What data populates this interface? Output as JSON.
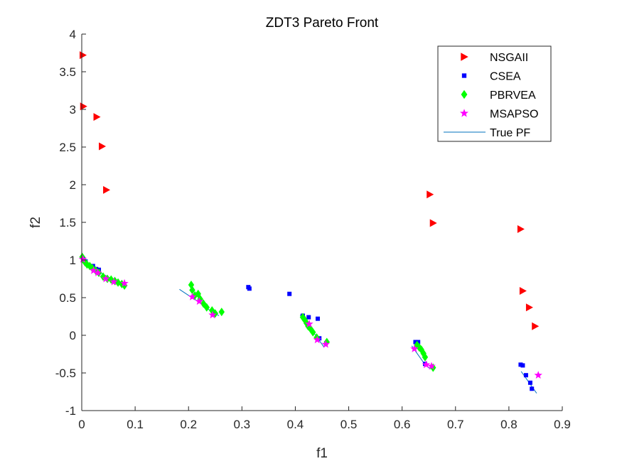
{
  "chart_data": {
    "type": "scatter",
    "title": "ZDT3 Pareto Front",
    "xlabel": "f1",
    "ylabel": "f2",
    "xlim": [
      0,
      0.9
    ],
    "ylim": [
      -1,
      4
    ],
    "xticks": [
      "0",
      "0.1",
      "0.2",
      "0.3",
      "0.4",
      "0.5",
      "0.6",
      "0.7",
      "0.8",
      "0.9"
    ],
    "yticks": [
      "-1",
      "-0.5",
      "0",
      "0.5",
      "1",
      "1.5",
      "2",
      "2.5",
      "3",
      "3.5",
      "4"
    ],
    "grid": false,
    "legend_position": "top-right",
    "series": [
      {
        "name": "NSGAII",
        "marker": "triangle-right",
        "color": "#FF0000",
        "points": [
          [
            0.002,
            3.72
          ],
          [
            0.003,
            3.04
          ],
          [
            0.028,
            2.9
          ],
          [
            0.038,
            2.51
          ],
          [
            0.046,
            1.93
          ],
          [
            0.652,
            1.87
          ],
          [
            0.658,
            1.49
          ],
          [
            0.822,
            1.41
          ],
          [
            0.826,
            0.59
          ],
          [
            0.838,
            0.37
          ],
          [
            0.849,
            0.12
          ]
        ]
      },
      {
        "name": "CSEA",
        "marker": "square",
        "color": "#0000FF",
        "points": [
          [
            0.003,
            1.01
          ],
          [
            0.007,
            0.98
          ],
          [
            0.021,
            0.92
          ],
          [
            0.027,
            0.88
          ],
          [
            0.032,
            0.87
          ],
          [
            0.312,
            0.64
          ],
          [
            0.314,
            0.62
          ],
          [
            0.389,
            0.55
          ],
          [
            0.414,
            0.26
          ],
          [
            0.425,
            0.24
          ],
          [
            0.442,
            0.22
          ],
          [
            0.445,
            -0.04
          ],
          [
            0.625,
            -0.09
          ],
          [
            0.63,
            -0.09
          ],
          [
            0.643,
            -0.38
          ],
          [
            0.822,
            -0.39
          ],
          [
            0.826,
            -0.4
          ],
          [
            0.832,
            -0.53
          ],
          [
            0.84,
            -0.63
          ],
          [
            0.843,
            -0.71
          ]
        ]
      },
      {
        "name": "PBRVEA",
        "marker": "diamond",
        "color": "#00FF00",
        "points": [
          [
            0.001,
            1.04
          ],
          [
            0.006,
            0.97
          ],
          [
            0.01,
            0.94
          ],
          [
            0.015,
            0.92
          ],
          [
            0.02,
            0.89
          ],
          [
            0.026,
            0.86
          ],
          [
            0.032,
            0.83
          ],
          [
            0.04,
            0.78
          ],
          [
            0.048,
            0.75
          ],
          [
            0.055,
            0.74
          ],
          [
            0.062,
            0.72
          ],
          [
            0.068,
            0.7
          ],
          [
            0.075,
            0.68
          ],
          [
            0.08,
            0.66
          ],
          [
            0.205,
            0.67
          ],
          [
            0.207,
            0.6
          ],
          [
            0.212,
            0.53
          ],
          [
            0.218,
            0.55
          ],
          [
            0.222,
            0.48
          ],
          [
            0.228,
            0.42
          ],
          [
            0.234,
            0.37
          ],
          [
            0.244,
            0.33
          ],
          [
            0.25,
            0.29
          ],
          [
            0.262,
            0.31
          ],
          [
            0.414,
            0.24
          ],
          [
            0.418,
            0.2
          ],
          [
            0.421,
            0.16
          ],
          [
            0.424,
            0.12
          ],
          [
            0.428,
            0.09
          ],
          [
            0.433,
            0.04
          ],
          [
            0.44,
            -0.03
          ],
          [
            0.459,
            -0.09
          ],
          [
            0.628,
            -0.13
          ],
          [
            0.632,
            -0.16
          ],
          [
            0.636,
            -0.19
          ],
          [
            0.64,
            -0.24
          ],
          [
            0.643,
            -0.29
          ],
          [
            0.658,
            -0.43
          ]
        ]
      },
      {
        "name": "MSAPSO",
        "marker": "star",
        "color": "#FF00FF",
        "points": [
          [
            0.002,
            1.01
          ],
          [
            0.022,
            0.86
          ],
          [
            0.03,
            0.83
          ],
          [
            0.045,
            0.75
          ],
          [
            0.06,
            0.71
          ],
          [
            0.08,
            0.69
          ],
          [
            0.207,
            0.51
          ],
          [
            0.22,
            0.45
          ],
          [
            0.245,
            0.27
          ],
          [
            0.426,
            0.15
          ],
          [
            0.441,
            -0.06
          ],
          [
            0.457,
            -0.12
          ],
          [
            0.623,
            -0.18
          ],
          [
            0.645,
            -0.39
          ],
          [
            0.655,
            -0.41
          ],
          [
            0.855,
            -0.53
          ]
        ]
      },
      {
        "name": "True PF",
        "marker": "line",
        "color": "#0072BD",
        "segments": [
          [
            [
              0.0,
              1.0
            ],
            [
              0.02,
              0.9
            ],
            [
              0.04,
              0.81
            ],
            [
              0.06,
              0.74
            ],
            [
              0.083,
              0.67
            ]
          ],
          [
            [
              0.183,
              0.61
            ],
            [
              0.2,
              0.53
            ],
            [
              0.22,
              0.44
            ],
            [
              0.24,
              0.33
            ],
            [
              0.257,
              0.26
            ]
          ],
          [
            [
              0.409,
              0.27
            ],
            [
              0.42,
              0.18
            ],
            [
              0.43,
              0.08
            ],
            [
              0.44,
              -0.02
            ],
            [
              0.454,
              -0.16
            ]
          ],
          [
            [
              0.618,
              -0.14
            ],
            [
              0.63,
              -0.26
            ],
            [
              0.64,
              -0.36
            ],
            [
              0.653,
              -0.45
            ]
          ],
          [
            [
              0.823,
              -0.48
            ],
            [
              0.835,
              -0.6
            ],
            [
              0.845,
              -0.7
            ],
            [
              0.852,
              -0.77
            ]
          ]
        ]
      }
    ]
  }
}
